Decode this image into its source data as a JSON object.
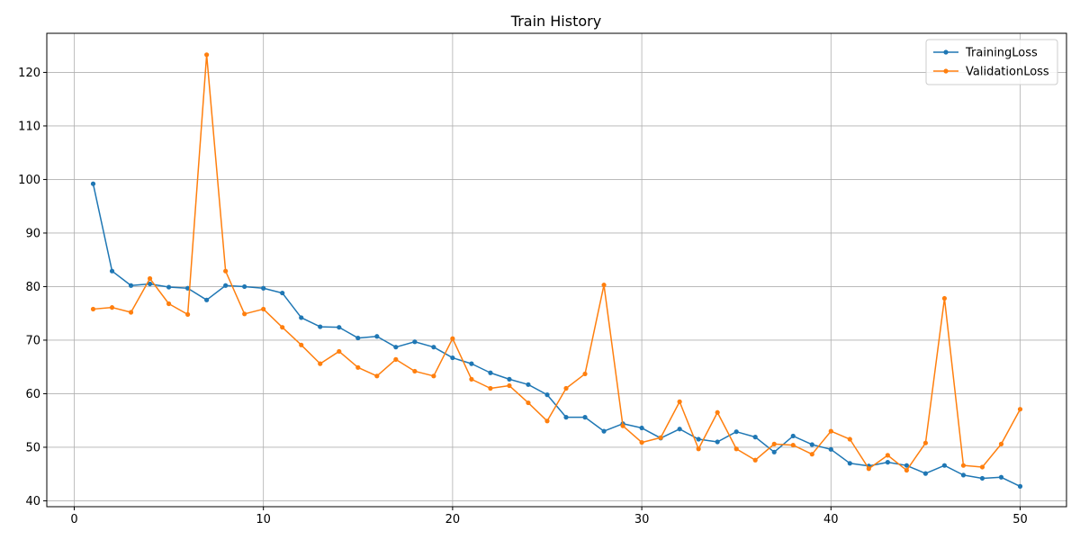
{
  "chart_data": {
    "type": "line",
    "title": "Train History",
    "xlabel": "",
    "ylabel": "",
    "xlim": [
      -1.45,
      52.45
    ],
    "ylim": [
      38.9,
      127.3
    ],
    "xticks": [
      0,
      10,
      20,
      30,
      40,
      50
    ],
    "yticks": [
      40,
      50,
      60,
      70,
      80,
      90,
      100,
      110,
      120
    ],
    "grid": true,
    "legend_position": "top-right",
    "x": [
      1,
      2,
      3,
      4,
      5,
      6,
      7,
      8,
      9,
      10,
      11,
      12,
      13,
      14,
      15,
      16,
      17,
      18,
      19,
      20,
      21,
      22,
      23,
      24,
      25,
      26,
      27,
      28,
      29,
      30,
      31,
      32,
      33,
      34,
      35,
      36,
      37,
      38,
      39,
      40,
      41,
      42,
      43,
      44,
      45,
      46,
      47,
      48,
      49,
      50
    ],
    "series": [
      {
        "name": "TrainingLoss",
        "color": "#1f77b4",
        "values": [
          99.2,
          82.9,
          80.2,
          80.5,
          79.9,
          79.7,
          77.5,
          80.2,
          80.0,
          79.7,
          78.8,
          74.2,
          72.5,
          72.4,
          70.4,
          70.7,
          68.7,
          69.7,
          68.7,
          66.7,
          65.6,
          63.9,
          62.7,
          61.7,
          59.8,
          55.6,
          55.6,
          53.0,
          54.4,
          53.6,
          51.7,
          53.4,
          51.5,
          51.0,
          52.9,
          51.9,
          49.1,
          52.1,
          50.5,
          49.6,
          47.0,
          46.5,
          47.2,
          46.6,
          45.1,
          46.6,
          44.8,
          44.2,
          44.4,
          42.7
        ]
      },
      {
        "name": "ValidationLoss",
        "color": "#ff7f0e",
        "values": [
          75.8,
          76.1,
          75.2,
          81.5,
          76.8,
          74.8,
          123.3,
          82.9,
          74.9,
          75.8,
          72.4,
          69.1,
          65.6,
          67.9,
          64.9,
          63.3,
          66.4,
          64.2,
          63.3,
          70.3,
          62.7,
          61.0,
          61.5,
          58.3,
          54.9,
          61.0,
          63.7,
          80.3,
          54.0,
          50.9,
          51.8,
          58.5,
          49.7,
          56.5,
          49.7,
          47.6,
          50.6,
          50.4,
          48.7,
          53.0,
          51.5,
          46.0,
          48.5,
          45.7,
          50.8,
          77.8,
          46.6,
          46.3,
          50.6,
          57.1
        ]
      }
    ]
  }
}
